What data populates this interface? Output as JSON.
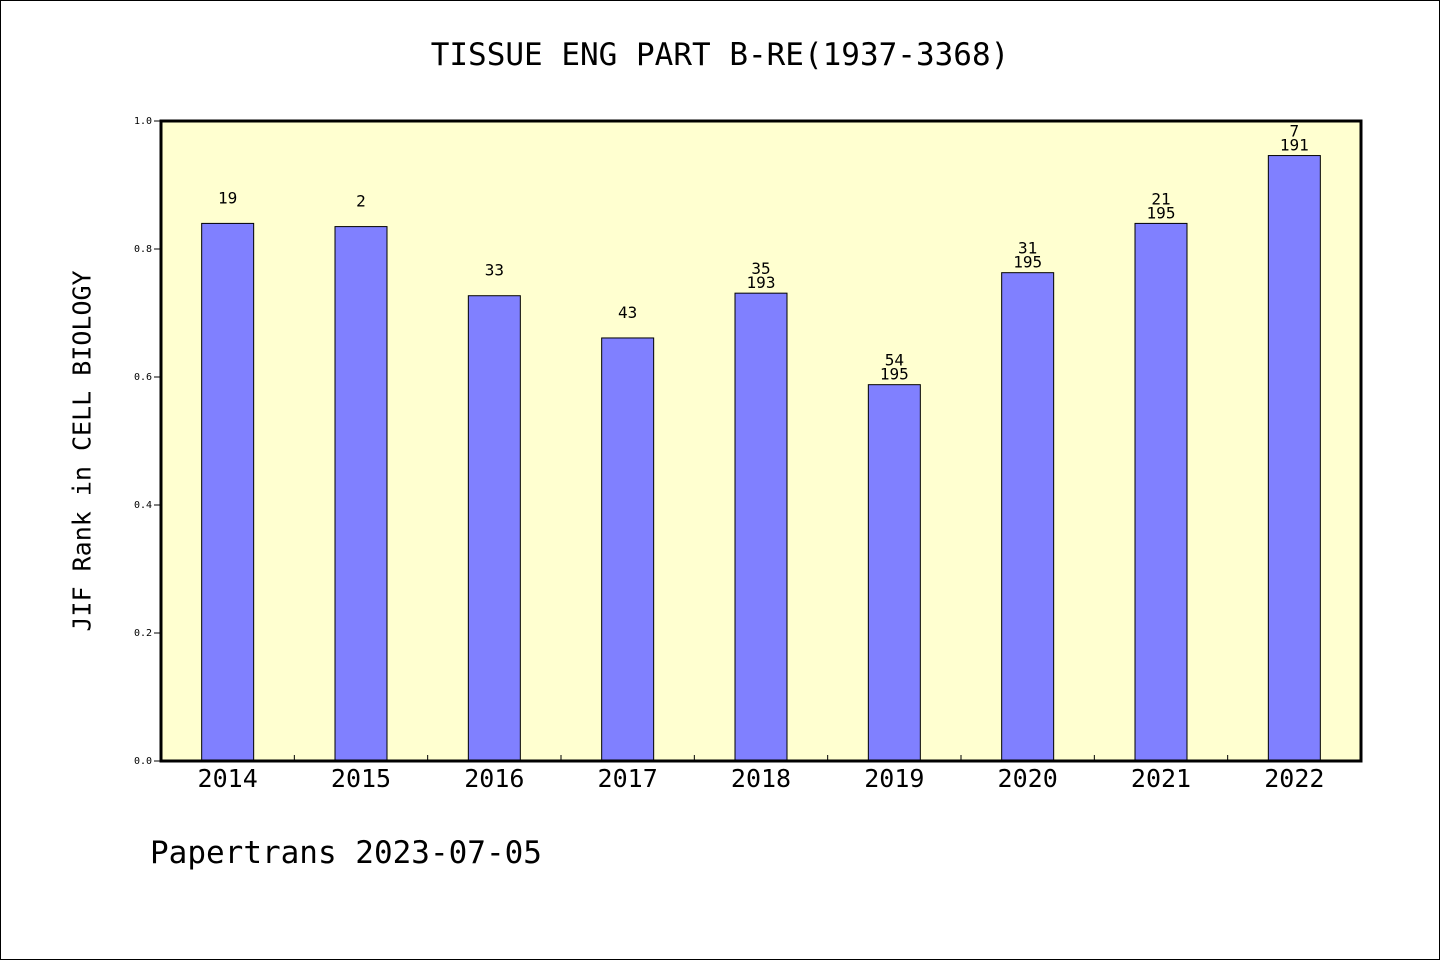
{
  "chart_data": {
    "type": "bar",
    "title": "TISSUE ENG PART B-RE(1937-3368)",
    "ylabel": "JIF Rank in CELL BIOLOGY",
    "xlabel": "",
    "ylim": [
      0,
      1.0
    ],
    "yticks": [
      "0.0",
      "0.2",
      "0.4",
      "0.6",
      "0.8",
      "1.0"
    ],
    "categories": [
      "2014",
      "2015",
      "2016",
      "2017",
      "2018",
      "2019",
      "2020",
      "2021",
      "2022"
    ],
    "values": [
      0.84,
      0.835,
      0.727,
      0.661,
      0.731,
      0.588,
      0.763,
      0.84,
      0.946
    ],
    "bar_labels": [
      {
        "rank": "19",
        "total": ""
      },
      {
        "rank": "2",
        "total": ""
      },
      {
        "rank": "33",
        "total": ""
      },
      {
        "rank": "43",
        "total": ""
      },
      {
        "rank": "35",
        "total": "193"
      },
      {
        "rank": "54",
        "total": "195"
      },
      {
        "rank": "31",
        "total": "195"
      },
      {
        "rank": "21",
        "total": "195"
      },
      {
        "rank": "7",
        "total": "191"
      }
    ],
    "grid": false,
    "colors": {
      "bar": "#8080ff",
      "plot_background": "#ffffd0",
      "frame": "#000000"
    }
  },
  "footer": "Papertrans 2023-07-05"
}
